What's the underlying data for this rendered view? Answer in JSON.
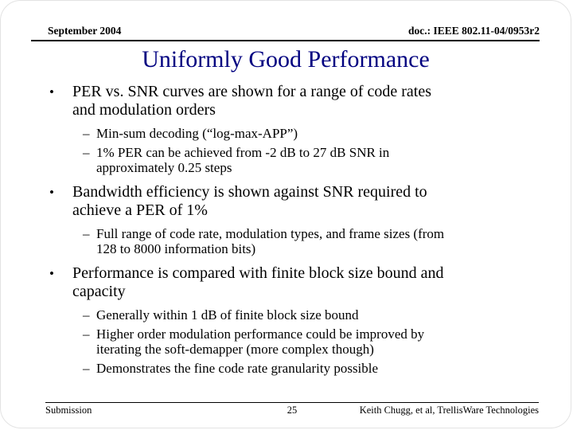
{
  "slide": {
    "header": {
      "date": "September 2004",
      "doc": "doc.: IEEE 802.11-04/0953r2"
    },
    "title": "Uniformly Good Performance",
    "markers": {
      "bullet": "•",
      "dash": "–"
    },
    "bullets": [
      {
        "text": "PER vs. SNR curves are shown for a range of code rates\nand modulation orders",
        "subs": [
          "Min-sum decoding (“log-max-APP”)",
          "1% PER can be achieved from -2 dB to 27 dB SNR in\napproximately 0.25 steps"
        ]
      },
      {
        "text": "Bandwidth efficiency is shown against SNR required to\nachieve a PER of 1%",
        "subs": [
          "Full range of code rate, modulation types, and frame sizes (from\n128 to 8000 information bits)"
        ]
      },
      {
        "text": "Performance is compared with finite block size bound and\ncapacity",
        "subs": [
          "Generally within 1 dB of finite block size bound",
          "Higher order modulation performance could be improved by\niterating the soft-demapper (more complex though)",
          "Demonstrates the fine code rate granularity possible"
        ]
      }
    ],
    "footer": {
      "left": "Submission",
      "page": "25",
      "right": "Keith Chugg, et al, TrellisWare Technologies"
    },
    "colors": {
      "title": "#000080",
      "text": "#000000",
      "background": "#ffffff"
    }
  }
}
